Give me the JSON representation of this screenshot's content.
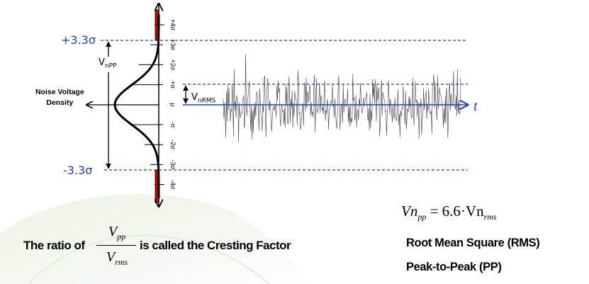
{
  "levels": {
    "upper": "+3.3σ",
    "lower": "-3.3σ"
  },
  "vnpp": {
    "main": "V",
    "sub": "nPP"
  },
  "vnrms": {
    "main": "V",
    "sub": "nRMS"
  },
  "density_label": [
    "Noise Voltage",
    "Density"
  ],
  "time_label": "t",
  "sigma_ticks": [
    "+4σ",
    "+3σ",
    "+2σ",
    "+σ",
    "μ",
    "-σ",
    "-2σ",
    "-3σ",
    "-4σ"
  ],
  "equation": {
    "lhs": "Vn",
    "lhs_sub": "pp",
    "middle": " = 6.6·Vn",
    "rhs_sub": "rms"
  },
  "ratio": {
    "prefix": "The ratio of",
    "num": "V",
    "num_sub": "pp",
    "den": "V",
    "den_sub": "rms",
    "suffix": "is called the Cresting Factor"
  },
  "definitions": [
    "Root Mean Square (RMS)",
    "Peak-to-Peak (PP)"
  ],
  "colors": {
    "blue": "#1f3fbf",
    "red": "#d00000",
    "axis": "#000000"
  }
}
